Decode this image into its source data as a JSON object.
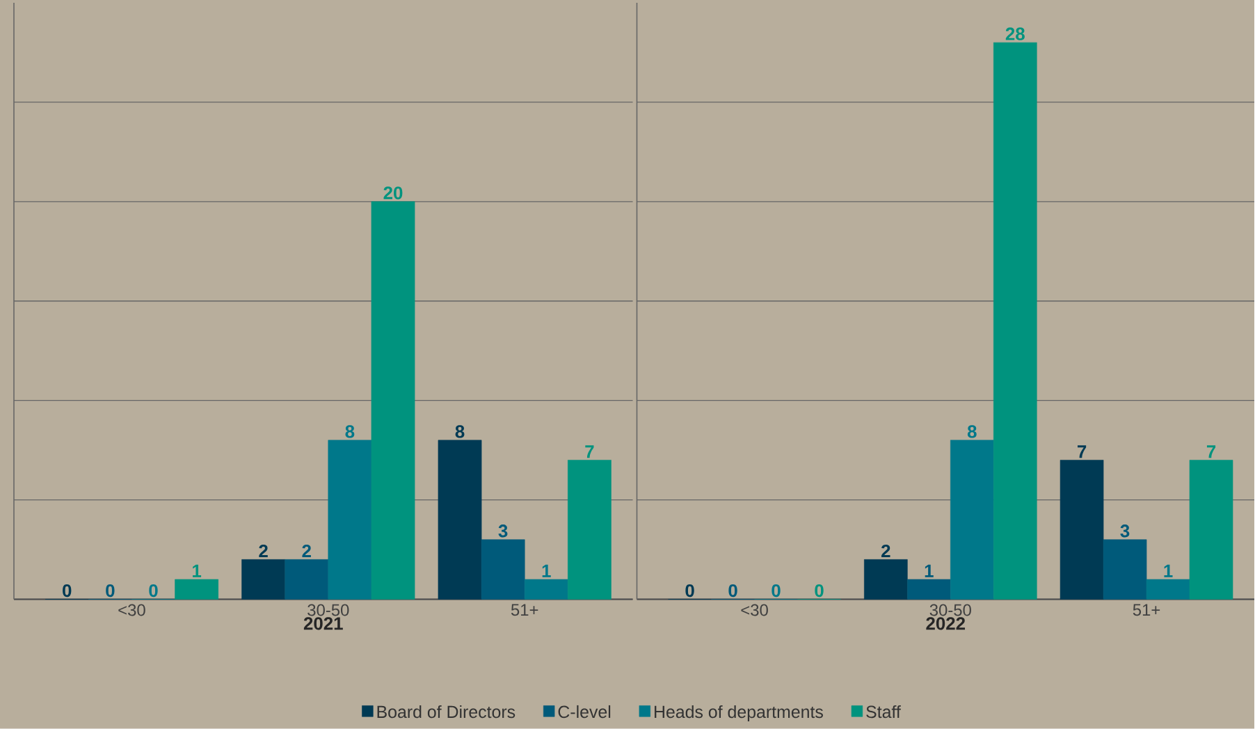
{
  "chart_data": [
    {
      "type": "bar",
      "xlabel": "2021",
      "categories": [
        "<30",
        "30-50",
        "51+"
      ],
      "ylim": [
        0,
        30
      ],
      "yticks": [
        0,
        {
          "value": 5,
          "label": null
        },
        {
          "value": 10,
          "label": null
        },
        {
          "value": 15,
          "label": null
        },
        {
          "value": 20,
          "label": null
        },
        {
          "value": 25,
          "label": null
        }
      ],
      "tick_labels": "x",
      "grid": "y",
      "data_labels": true,
      "legend": "bottom",
      "series": [
        {
          "name": "Board of Directors",
          "color": "#003a54",
          "values": [
            0,
            2,
            8
          ]
        },
        {
          "name": "C-level",
          "color": "#005a7a",
          "values": [
            0,
            2,
            3
          ]
        },
        {
          "name": "Heads of departments",
          "color": "#00788a",
          "values": [
            0,
            8,
            1
          ]
        },
        {
          "name": "Staff",
          "color": "#00937e",
          "values": [
            1,
            20,
            7
          ]
        }
      ]
    },
    {
      "type": "bar",
      "xlabel": "2022",
      "categories": [
        "<30",
        "30-50",
        "51+"
      ],
      "ylim": [
        0,
        30
      ],
      "yticks": [
        0,
        {
          "value": 5,
          "label": null
        },
        {
          "value": 10,
          "label": null
        },
        {
          "value": 15,
          "label": null
        },
        {
          "value": 20,
          "label": null
        },
        {
          "value": 25,
          "label": null
        }
      ],
      "tick_labels": "x",
      "grid": "y",
      "data_labels": true,
      "series": [
        {
          "color": "#003a54",
          "values": [
            0,
            2,
            7
          ]
        },
        {
          "color": "#005a7a",
          "values": [
            0,
            1,
            3
          ]
        },
        {
          "color": "#00788a",
          "values": [
            0,
            8,
            1
          ]
        },
        {
          "color": "#00937e",
          "values": [
            0,
            28,
            7
          ]
        }
      ]
    }
  ]
}
